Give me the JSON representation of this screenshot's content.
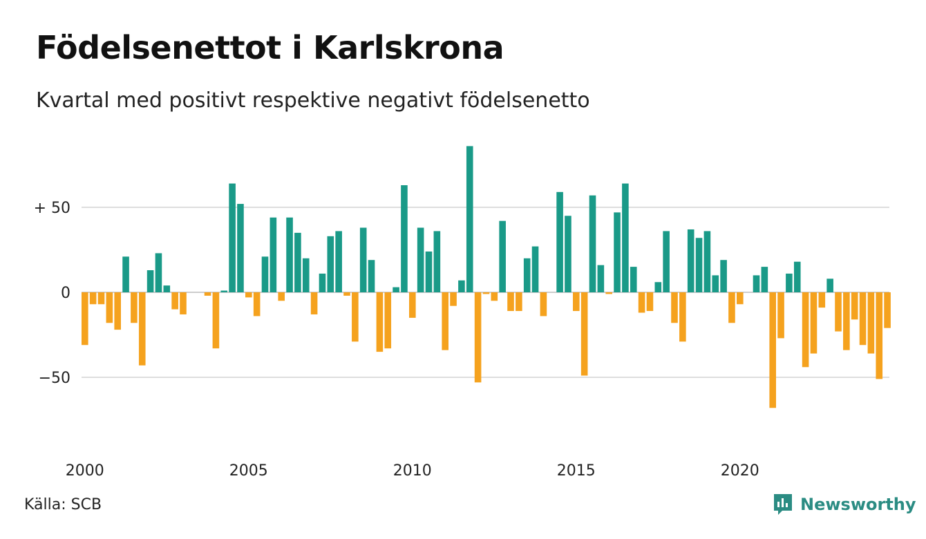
{
  "title": "Födelsenettot i Karlskrona",
  "subtitle": "Kvartal med positivt respektive negativt födelsenetto",
  "source": "Källa: SCB",
  "brand": {
    "name": "Newsworthy",
    "icon": "newsworthy-logo-icon"
  },
  "colors": {
    "positive": "#1a9a88",
    "negative": "#f5a21e",
    "grid": "#dddddd",
    "brand": "#2b8c83"
  },
  "chart_data": {
    "type": "bar",
    "title": "Födelsenettot i Karlskrona",
    "xlabel": "",
    "ylabel": "",
    "ylim": [
      -85,
      90
    ],
    "y_ticks": [
      {
        "value": 50,
        "label": "+ 50"
      },
      {
        "value": 0,
        "label": "0"
      },
      {
        "value": -50,
        "label": "−50"
      }
    ],
    "x_ticks": [
      {
        "year": 2000,
        "label": "2000"
      },
      {
        "year": 2005,
        "label": "2005"
      },
      {
        "year": 2010,
        "label": "2010"
      },
      {
        "year": 2015,
        "label": "2015"
      },
      {
        "year": 2020,
        "label": "2020"
      }
    ],
    "grid": true,
    "start_year": 2000,
    "start_quarter": 1,
    "values": [
      -31,
      -7,
      -7,
      -18,
      -22,
      21,
      -18,
      -43,
      13,
      23,
      4,
      -10,
      -13,
      0,
      0,
      -2,
      -33,
      1,
      64,
      52,
      -3,
      -14,
      21,
      44,
      -5,
      44,
      35,
      20,
      -13,
      11,
      33,
      36,
      -2,
      -29,
      38,
      19,
      -35,
      -33,
      3,
      63,
      -15,
      38,
      24,
      36,
      -34,
      -8,
      7,
      86,
      -53,
      -1,
      -5,
      42,
      -11,
      -11,
      20,
      27,
      -14,
      0,
      59,
      45,
      -11,
      -49,
      57,
      16,
      -1,
      47,
      64,
      15,
      -12,
      -11,
      6,
      36,
      -18,
      -29,
      37,
      32,
      36,
      10,
      19,
      -18,
      -7,
      0,
      10,
      15,
      -68,
      -27,
      11,
      18,
      -44,
      -36,
      -9,
      8,
      -23,
      -34,
      -16,
      -31,
      -36,
      -51,
      -21
    ]
  }
}
